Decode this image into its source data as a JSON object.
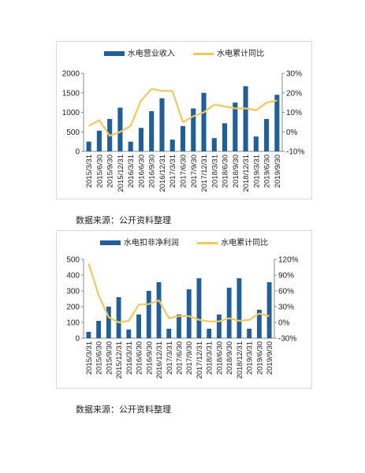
{
  "source_note_1": "数据来源：公开资料整理",
  "source_note_2": "数据来源：公开资料整理",
  "colors": {
    "bar": "#1f5f9c",
    "line": "#f2c85b",
    "axis": "#888888"
  },
  "chart_data": [
    {
      "type": "bar",
      "categories": [
        "2015/3/31",
        "2015/6/30",
        "2015/9/30",
        "2015/12/31",
        "2016/3/31",
        "2016/6/30",
        "2016/9/30",
        "2016/12/31",
        "2017/3/31",
        "2017/6/30",
        "2017/9/30",
        "2017/12/31",
        "2018/3/31",
        "2018/6/30",
        "2018/9/30",
        "2018/12/31",
        "2019/3/31",
        "2019/6/30",
        "2019/9/30"
      ],
      "series": [
        {
          "name": "水电营业收入",
          "type": "bar",
          "axis": "left",
          "values": [
            250,
            530,
            830,
            1120,
            250,
            600,
            1030,
            1360,
            300,
            650,
            1100,
            1500,
            340,
            720,
            1250,
            1670,
            380,
            830,
            1450
          ]
        },
        {
          "name": "水电累计同比",
          "type": "line",
          "axis": "right",
          "unit": "%",
          "values": [
            3,
            6,
            -2,
            0,
            3,
            16,
            22,
            21,
            21,
            5,
            8,
            10,
            14,
            13,
            12,
            12,
            11,
            15,
            16
          ]
        }
      ],
      "ylim_left": [
        0,
        2000
      ],
      "yticks_left": [
        "0",
        "500",
        "1000",
        "1500",
        "2000"
      ],
      "ylim_right": [
        -10,
        30
      ],
      "yticks_right": [
        "-10%",
        "0%",
        "10%",
        "20%",
        "30%"
      ],
      "legend_position": "top",
      "grid": false
    },
    {
      "type": "bar",
      "categories": [
        "2015/3/31",
        "2015/6/30",
        "2015/9/30",
        "2015/12/31",
        "2016/3/31",
        "2016/6/30",
        "2016/9/30",
        "2016/12/31",
        "2017/3/31",
        "2017/6/30",
        "2017/9/30",
        "2017/12/31",
        "2018/3/31",
        "2018/6/30",
        "2018/9/30",
        "2018/12/31",
        "2019/3/31",
        "2019/6/30",
        "2019/9/30"
      ],
      "series": [
        {
          "name": "水电扣非净利润",
          "type": "bar",
          "axis": "left",
          "values": [
            40,
            110,
            200,
            260,
            55,
            150,
            300,
            355,
            60,
            150,
            310,
            380,
            60,
            150,
            320,
            380,
            60,
            180,
            355
          ]
        },
        {
          "name": "水电累计同比",
          "type": "line",
          "axis": "right",
          "unit": "%",
          "values": [
            112,
            52,
            10,
            0,
            3,
            34,
            35,
            42,
            8,
            12,
            12,
            5,
            2,
            2,
            8,
            3,
            5,
            17,
            12
          ]
        }
      ],
      "ylim_left": [
        0,
        500
      ],
      "yticks_left": [
        "0",
        "100",
        "200",
        "300",
        "400",
        "500"
      ],
      "ylim_right": [
        -30,
        120
      ],
      "yticks_right": [
        "-30%",
        "0%",
        "30%",
        "60%",
        "90%",
        "120%"
      ],
      "legend_position": "top",
      "grid": false
    }
  ]
}
